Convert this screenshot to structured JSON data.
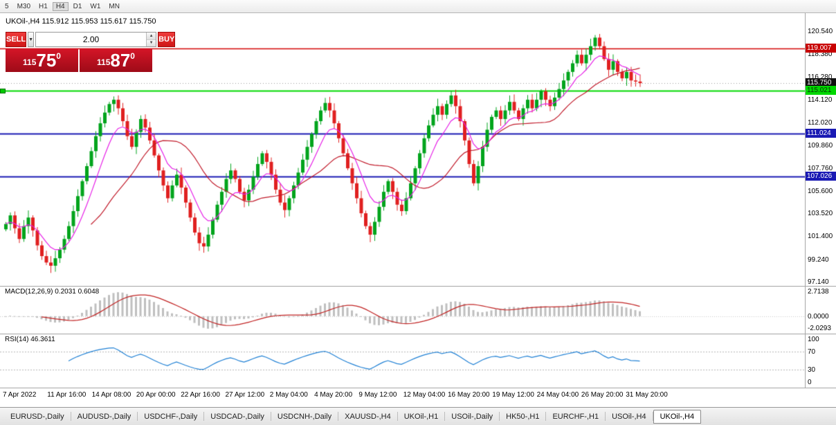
{
  "toolbar": {
    "timeframes": [
      {
        "label": "5",
        "active": false
      },
      {
        "label": "M30",
        "active": false
      },
      {
        "label": "H1",
        "active": false
      },
      {
        "label": "H4",
        "active": true
      },
      {
        "label": "D1",
        "active": false
      },
      {
        "label": "W1",
        "active": false
      },
      {
        "label": "MN",
        "active": false
      }
    ]
  },
  "chart_header": {
    "text": "UKOil-,H4 115.912 115.953 115.617 115.750"
  },
  "trade_panel": {
    "sell_label": "SELL",
    "buy_label": "BUY",
    "volume": "2.00",
    "sell_price_small": "115",
    "sell_price_big": "75",
    "sell_price_sup": "0",
    "buy_price_small": "115",
    "buy_price_big": "87",
    "buy_price_sup": "0"
  },
  "price_axis": {
    "gridline_labels": [
      "120.540",
      "118.380",
      "116.280",
      "114.120",
      "112.020",
      "109.860",
      "107.760",
      "105.600",
      "103.520",
      "101.400",
      "99.240",
      "97.140"
    ]
  },
  "price_flags": [
    {
      "text": "119.007",
      "price": 119.007,
      "bg": "#c80000",
      "fg": "#ffffff"
    },
    {
      "text": "115.750",
      "price": 115.75,
      "bg": "#111111",
      "fg": "#ffffff"
    },
    {
      "text": "115.021",
      "price": 115.021,
      "bg": "#00d800",
      "fg": "#063306"
    },
    {
      "text": "111.024",
      "price": 111.024,
      "bg": "#1a1ab4",
      "fg": "#ffffff"
    },
    {
      "text": "107.026",
      "price": 107.026,
      "bg": "#1a1ab4",
      "fg": "#ffffff"
    }
  ],
  "hlines": [
    {
      "price": 119.007,
      "color": "#d40000",
      "width": 1.6
    },
    {
      "price": 115.021,
      "color": "#00d800",
      "width": 2
    },
    {
      "price": 111.024,
      "color": "#1a1ab4",
      "width": 2
    },
    {
      "price": 107.026,
      "color": "#1a1ab4",
      "width": 2
    }
  ],
  "current_price": 115.75,
  "macd_panel": {
    "label": "MACD(12,26,9) 0.2031 0.6048",
    "axis_top": "2.7138",
    "axis_zero": "0.0000",
    "axis_bottom": "-2.0293",
    "colors": {
      "histogram": "#bfbfbf",
      "signal": "#c02020"
    }
  },
  "rsi_panel": {
    "label": "RSI(14) 46.3611",
    "axis": [
      "100",
      "70",
      "30",
      "0"
    ],
    "levels": [
      70,
      30
    ],
    "color": "#1d7fd4"
  },
  "time_axis": [
    "7 Apr 2022",
    "11 Apr 16:00",
    "14 Apr 08:00",
    "20 Apr 00:00",
    "22 Apr 16:00",
    "27 Apr 12:00",
    "2 May 04:00",
    "4 May 20:00",
    "9 May 12:00",
    "12 May 04:00",
    "16 May 20:00",
    "19 May 12:00",
    "24 May 04:00",
    "26 May 20:00",
    "31 May 20:00"
  ],
  "tabs": {
    "items": [
      "EURUSD-,Daily",
      "AUDUSD-,Daily",
      "USDCHF-,Daily",
      "USDCAD-,Daily",
      "USDCNH-,Daily",
      "XAUUSD-,H4",
      "UKOil-,H1",
      "USOil-,Daily",
      "HK50-,H1",
      "EURCHF-,H1",
      "USOil-,H4",
      "UKOil-,H4"
    ],
    "active_index": 11
  },
  "chart_data": {
    "type": "candlestick",
    "symbol": "UKOil-,H4",
    "ylim": [
      96.8,
      122.4
    ],
    "up_color": "#00a41c",
    "down_color": "#e02020",
    "ma_fast_color": "#e61ee6",
    "ma_slow_color": "#c01828",
    "closes": [
      102.6,
      103.4,
      102.2,
      101.2,
      102.4,
      103.2,
      102.0,
      100.6,
      99.6,
      99.0,
      98.7,
      99.4,
      100.2,
      101.2,
      102.4,
      103.8,
      105.2,
      106.6,
      108.0,
      109.4,
      110.8,
      112.0,
      113.0,
      113.8,
      114.2,
      113.4,
      112.2,
      110.8,
      109.8,
      111.2,
      112.4,
      111.6,
      110.4,
      109.0,
      107.6,
      106.2,
      105.0,
      106.2,
      107.2,
      106.0,
      104.6,
      103.2,
      101.8,
      100.8,
      100.5,
      101.6,
      103.0,
      104.4,
      105.6,
      106.8,
      107.6,
      106.8,
      105.6,
      104.8,
      105.8,
      107.0,
      108.2,
      109.2,
      108.4,
      107.2,
      105.8,
      104.6,
      103.9,
      105.0,
      106.2,
      107.4,
      108.6,
      109.8,
      111.0,
      112.2,
      113.2,
      113.9,
      113.2,
      112.0,
      110.6,
      109.2,
      107.8,
      106.4,
      105.0,
      103.6,
      102.4,
      101.6,
      102.8,
      104.2,
      105.6,
      106.6,
      105.6,
      104.4,
      103.8,
      105.0,
      106.4,
      107.8,
      109.2,
      110.6,
      111.8,
      112.8,
      113.6,
      112.8,
      113.8,
      114.6,
      113.6,
      112.2,
      110.4,
      108.2,
      106.4,
      108.0,
      109.8,
      111.4,
      112.6,
      113.2,
      112.4,
      113.2,
      114.0,
      113.2,
      112.4,
      113.4,
      114.2,
      113.4,
      114.2,
      115.0,
      114.2,
      113.6,
      114.4,
      115.2,
      116.0,
      116.8,
      117.6,
      118.4,
      117.6,
      118.4,
      119.2,
      120.0,
      119.2,
      118.0,
      117.0,
      117.8,
      116.8,
      116.2,
      116.8,
      116.0,
      115.9,
      115.75
    ]
  }
}
